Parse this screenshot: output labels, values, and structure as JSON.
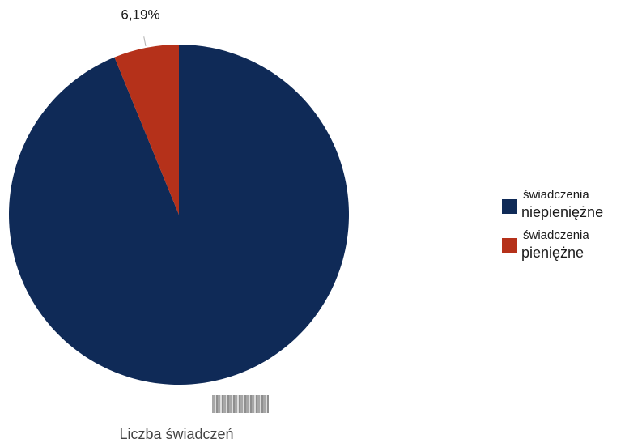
{
  "chart_data": {
    "type": "pie",
    "title": "",
    "xlabel": "Liczba świadczeń",
    "slices": [
      {
        "label": "świadczenia niepieniężne",
        "value": 93.81,
        "color": "#0f2a57"
      },
      {
        "label": "świadczenia pieniężne",
        "value": 6.19,
        "color": "#b5311a"
      }
    ],
    "data_labels": [
      "",
      "6,19%"
    ],
    "legend": {
      "placement": "right",
      "entries": [
        {
          "line1": "świadczenia",
          "line2": "niepieniężne",
          "color": "#0f2a57"
        },
        {
          "line1": "świadczenia",
          "line2": "pieniężne",
          "color": "#b5311a"
        }
      ]
    }
  }
}
